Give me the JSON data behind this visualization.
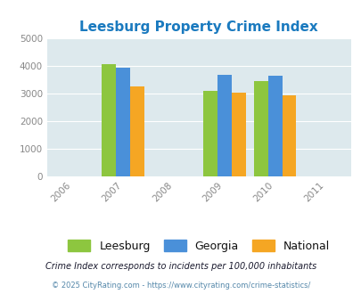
{
  "title": "Leesburg Property Crime Index",
  "title_color": "#1a7abf",
  "years": [
    2006,
    2007,
    2008,
    2009,
    2010,
    2011
  ],
  "bar_years": [
    2007,
    2009,
    2010
  ],
  "leesburg": [
    4060,
    3110,
    3460
  ],
  "georgia": [
    3920,
    3670,
    3640
  ],
  "national": [
    3260,
    3040,
    2940
  ],
  "leesburg_color": "#8dc63f",
  "georgia_color": "#4a90d9",
  "national_color": "#f5a623",
  "ylim": [
    0,
    5000
  ],
  "yticks": [
    0,
    1000,
    2000,
    3000,
    4000,
    5000
  ],
  "plot_bg_color": "#dde9ed",
  "fig_bg_color": "#ffffff",
  "bar_width": 0.28,
  "footnote1": "Crime Index corresponds to incidents per 100,000 inhabitants",
  "footnote2": "© 2025 CityRating.com - https://www.cityrating.com/crime-statistics/",
  "footnote1_color": "#1a1a2e",
  "footnote2_color": "#5588aa",
  "tick_color": "#888888",
  "grid_color": "#ffffff"
}
